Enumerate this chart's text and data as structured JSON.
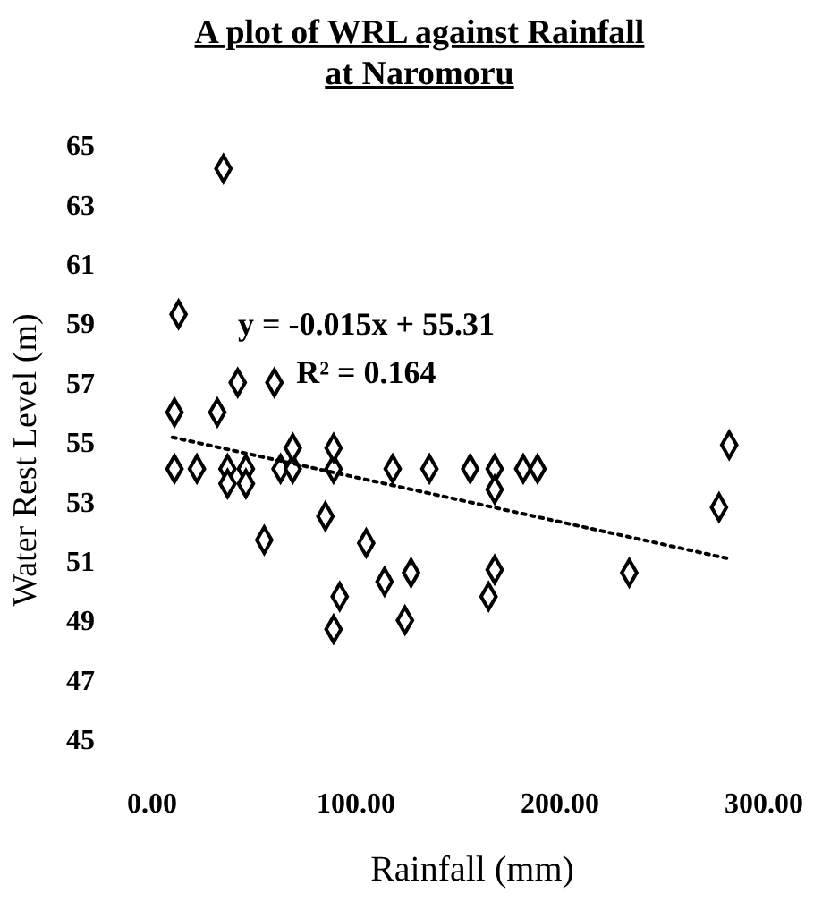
{
  "chart_data": {
    "type": "scatter",
    "title": "A plot of WRL against Rainfall at Naromoru",
    "xlabel": "Rainfall (mm)",
    "ylabel": "Water Rest Level (m)",
    "xlim": [
      0,
      300
    ],
    "ylim": [
      45,
      65
    ],
    "xticks": [
      {
        "value": 0,
        "label": "0.00"
      },
      {
        "value": 100,
        "label": "100.00"
      },
      {
        "value": 200,
        "label": "200.00"
      },
      {
        "value": 300,
        "label": "300.00"
      }
    ],
    "yticks": [
      45,
      47,
      49,
      51,
      53,
      55,
      57,
      59,
      61,
      63,
      65
    ],
    "grid": false,
    "annotations": [
      "y = -0.015x + 55.31",
      "R² = 0.164"
    ],
    "series": [
      {
        "color": "#000000",
        "marker": "diamond",
        "x": [
          35,
          13,
          42,
          60,
          11,
          32,
          283,
          278,
          55,
          85,
          105,
          92,
          168,
          165,
          234,
          127,
          114,
          89,
          124,
          11,
          22,
          37,
          46,
          63,
          69,
          89,
          118,
          136,
          156,
          168,
          182,
          189,
          69,
          89,
          37,
          46,
          168
        ],
        "values": [
          64.2,
          59.3,
          57.0,
          57.0,
          56.0,
          56.0,
          54.9,
          52.8,
          51.7,
          52.5,
          51.6,
          49.8,
          50.7,
          49.8,
          50.6,
          50.6,
          50.3,
          48.7,
          49.0,
          54.1,
          54.1,
          54.1,
          54.1,
          54.1,
          54.1,
          54.1,
          54.1,
          54.1,
          54.1,
          54.1,
          54.1,
          54.1,
          54.8,
          54.8,
          53.6,
          53.6,
          53.4
        ]
      },
      {
        "type": "line",
        "color": "#000000",
        "line_style": "dotted",
        "marker": "none",
        "x": [
          10,
          283
        ],
        "values": [
          55.16,
          51.07
        ]
      }
    ]
  }
}
